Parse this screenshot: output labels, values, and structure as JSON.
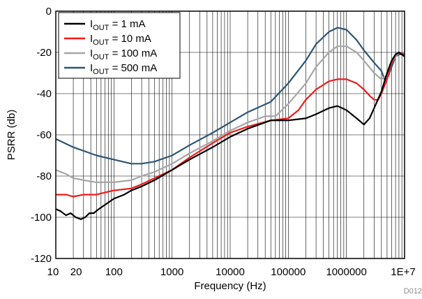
{
  "chart_data": {
    "type": "line",
    "title": "",
    "xlabel": "Frequency (Hz)",
    "ylabel": "PSRR (db)",
    "x_scale": "log",
    "xlim": [
      10,
      10000000
    ],
    "ylim": [
      -120,
      0
    ],
    "grid": true,
    "legend_position": "top-left",
    "x_tick_labels": [
      "10",
      "20",
      "100",
      "1000",
      "10000",
      "100000",
      "1000000",
      "1E+7"
    ],
    "x_tick_values": [
      10,
      20,
      100,
      1000,
      10000,
      100000,
      1000000,
      10000000
    ],
    "y_ticks": [
      0,
      -20,
      -40,
      -60,
      -80,
      -100,
      -120
    ],
    "y_tick_labels": [
      "0",
      "-20",
      "-40",
      "-60",
      "-80",
      "-100",
      "-120"
    ],
    "footnote": "D012",
    "series": [
      {
        "name_main": "I",
        "name_sub": "OUT",
        "name_rest": " = 1 mA",
        "color": "#000000",
        "points": [
          [
            10,
            -96
          ],
          [
            12,
            -97
          ],
          [
            15,
            -99
          ],
          [
            18,
            -98
          ],
          [
            22,
            -100
          ],
          [
            27,
            -101
          ],
          [
            32,
            -100
          ],
          [
            38,
            -98
          ],
          [
            45,
            -98
          ],
          [
            55,
            -96
          ],
          [
            70,
            -94
          ],
          [
            100,
            -91
          ],
          [
            150,
            -89
          ],
          [
            200,
            -87
          ],
          [
            300,
            -85
          ],
          [
            500,
            -82
          ],
          [
            1000,
            -77
          ],
          [
            2000,
            -72
          ],
          [
            5000,
            -66
          ],
          [
            10000,
            -61
          ],
          [
            20000,
            -57
          ],
          [
            50000,
            -53
          ],
          [
            100000,
            -53
          ],
          [
            200000,
            -52
          ],
          [
            300000,
            -50
          ],
          [
            500000,
            -47
          ],
          [
            700000,
            -46
          ],
          [
            1000000,
            -48
          ],
          [
            1500000,
            -52
          ],
          [
            2000000,
            -55
          ],
          [
            2500000,
            -52
          ],
          [
            3000000,
            -47
          ],
          [
            4000000,
            -39
          ],
          [
            5000000,
            -30
          ],
          [
            6000000,
            -24
          ],
          [
            7000000,
            -21
          ],
          [
            8000000,
            -20
          ],
          [
            9000000,
            -21
          ],
          [
            10000000,
            -22
          ]
        ]
      },
      {
        "name_main": "I",
        "name_sub": "OUT",
        "name_rest": " = 10 mA",
        "color": "#ee1c1c",
        "points": [
          [
            10,
            -89
          ],
          [
            15,
            -89
          ],
          [
            20,
            -90
          ],
          [
            30,
            -89
          ],
          [
            50,
            -89
          ],
          [
            70,
            -88
          ],
          [
            100,
            -87
          ],
          [
            200,
            -86
          ],
          [
            300,
            -84
          ],
          [
            500,
            -81
          ],
          [
            1000,
            -77
          ],
          [
            2000,
            -71
          ],
          [
            5000,
            -64
          ],
          [
            10000,
            -59
          ],
          [
            20000,
            -56
          ],
          [
            50000,
            -53
          ],
          [
            100000,
            -52
          ],
          [
            150000,
            -48
          ],
          [
            200000,
            -43
          ],
          [
            300000,
            -38
          ],
          [
            500000,
            -34
          ],
          [
            700000,
            -33
          ],
          [
            1000000,
            -33
          ],
          [
            1500000,
            -35
          ],
          [
            2000000,
            -38
          ],
          [
            2500000,
            -41
          ],
          [
            3000000,
            -43
          ],
          [
            3500000,
            -43
          ],
          [
            4000000,
            -40
          ],
          [
            5000000,
            -33
          ],
          [
            6000000,
            -25
          ],
          [
            7000000,
            -21
          ],
          [
            8000000,
            -20
          ],
          [
            10000000,
            -21
          ]
        ]
      },
      {
        "name_main": "I",
        "name_sub": "OUT",
        "name_rest": " = 100 mA",
        "color": "#a6a6a6",
        "points": [
          [
            10,
            -77
          ],
          [
            15,
            -79
          ],
          [
            20,
            -81
          ],
          [
            30,
            -82
          ],
          [
            50,
            -83
          ],
          [
            100,
            -83
          ],
          [
            200,
            -82
          ],
          [
            300,
            -80
          ],
          [
            500,
            -78
          ],
          [
            1000,
            -74
          ],
          [
            2000,
            -69
          ],
          [
            5000,
            -63
          ],
          [
            10000,
            -58
          ],
          [
            20000,
            -54
          ],
          [
            40000,
            -51
          ],
          [
            60000,
            -51
          ],
          [
            100000,
            -45
          ],
          [
            200000,
            -35
          ],
          [
            300000,
            -27
          ],
          [
            500000,
            -20
          ],
          [
            700000,
            -17
          ],
          [
            1000000,
            -17
          ],
          [
            1500000,
            -20
          ],
          [
            2000000,
            -24
          ],
          [
            3000000,
            -30
          ],
          [
            4000000,
            -33
          ],
          [
            5000000,
            -31
          ],
          [
            6000000,
            -25
          ],
          [
            7000000,
            -22
          ],
          [
            8000000,
            -20
          ],
          [
            10000000,
            -21
          ]
        ]
      },
      {
        "name_main": "I",
        "name_sub": "OUT",
        "name_rest": " = 500 mA",
        "color": "#2c5574",
        "points": [
          [
            10,
            -62
          ],
          [
            20,
            -66
          ],
          [
            50,
            -70
          ],
          [
            100,
            -72
          ],
          [
            200,
            -74
          ],
          [
            300,
            -74
          ],
          [
            500,
            -73
          ],
          [
            1000,
            -70
          ],
          [
            2000,
            -65
          ],
          [
            5000,
            -59
          ],
          [
            10000,
            -54
          ],
          [
            20000,
            -49
          ],
          [
            50000,
            -44
          ],
          [
            100000,
            -35
          ],
          [
            200000,
            -24
          ],
          [
            300000,
            -16
          ],
          [
            500000,
            -10
          ],
          [
            700000,
            -8
          ],
          [
            1000000,
            -9
          ],
          [
            1500000,
            -14
          ],
          [
            2000000,
            -19
          ],
          [
            3000000,
            -25
          ],
          [
            4000000,
            -29
          ],
          [
            4500000,
            -33
          ],
          [
            5000000,
            -33
          ],
          [
            6000000,
            -27
          ],
          [
            7000000,
            -22
          ],
          [
            8000000,
            -21
          ],
          [
            10000000,
            -21
          ]
        ]
      }
    ]
  }
}
